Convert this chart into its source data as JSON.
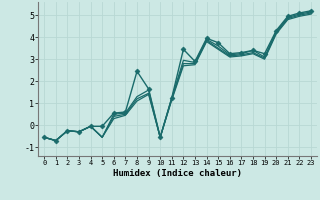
{
  "title": "",
  "xlabel": "Humidex (Indice chaleur)",
  "ylabel": "",
  "xlim": [
    -0.5,
    23.5
  ],
  "ylim": [
    -1.4,
    5.6
  ],
  "yticks": [
    -1,
    0,
    1,
    2,
    3,
    4,
    5
  ],
  "xticks": [
    0,
    1,
    2,
    3,
    4,
    5,
    6,
    7,
    8,
    9,
    10,
    11,
    12,
    13,
    14,
    15,
    16,
    17,
    18,
    19,
    20,
    21,
    22,
    23
  ],
  "bg_color": "#cce8e4",
  "line_color": "#1a6b6b",
  "grid_color": "#b8d8d4",
  "series": [
    {
      "x": [
        0,
        1,
        2,
        3,
        4,
        5,
        6,
        7,
        8,
        9,
        10,
        11,
        12,
        13,
        14,
        15,
        16,
        17,
        18,
        19,
        20,
        21,
        22,
        23
      ],
      "y": [
        -0.55,
        -0.7,
        -0.25,
        -0.3,
        -0.05,
        -0.05,
        0.55,
        0.6,
        2.45,
        1.65,
        -0.55,
        1.25,
        3.45,
        2.9,
        3.95,
        3.75,
        3.25,
        3.3,
        3.4,
        3.25,
        4.3,
        4.95,
        5.1,
        5.2
      ],
      "marker": "D",
      "markersize": 2.5,
      "linewidth": 1.0
    },
    {
      "x": [
        0,
        1,
        2,
        3,
        4,
        5,
        6,
        7,
        8,
        9,
        10,
        11,
        12,
        13,
        14,
        15,
        16,
        17,
        18,
        19,
        20,
        21,
        22,
        23
      ],
      "y": [
        -0.55,
        -0.7,
        -0.25,
        -0.3,
        -0.05,
        -0.55,
        0.5,
        0.55,
        1.3,
        1.6,
        -0.55,
        1.25,
        2.95,
        2.85,
        3.9,
        3.6,
        3.2,
        3.25,
        3.4,
        3.1,
        4.25,
        4.9,
        5.05,
        5.15
      ],
      "marker": null,
      "markersize": 0,
      "linewidth": 0.9
    },
    {
      "x": [
        0,
        1,
        2,
        3,
        4,
        5,
        6,
        7,
        8,
        9,
        10,
        11,
        12,
        13,
        14,
        15,
        16,
        17,
        18,
        19,
        20,
        21,
        22,
        23
      ],
      "y": [
        -0.55,
        -0.7,
        -0.25,
        -0.3,
        -0.05,
        -0.55,
        0.4,
        0.5,
        1.2,
        1.45,
        -0.55,
        1.2,
        2.8,
        2.8,
        3.85,
        3.5,
        3.15,
        3.2,
        3.3,
        3.05,
        4.2,
        4.85,
        5.0,
        5.1
      ],
      "marker": null,
      "markersize": 0,
      "linewidth": 0.9
    },
    {
      "x": [
        0,
        1,
        2,
        3,
        4,
        5,
        6,
        7,
        8,
        9,
        10,
        11,
        12,
        13,
        14,
        15,
        16,
        17,
        18,
        19,
        20,
        21,
        22,
        23
      ],
      "y": [
        -0.55,
        -0.7,
        -0.25,
        -0.3,
        -0.05,
        -0.55,
        0.3,
        0.45,
        1.1,
        1.4,
        -0.55,
        1.15,
        2.7,
        2.75,
        3.8,
        3.45,
        3.1,
        3.15,
        3.25,
        3.0,
        4.15,
        4.8,
        4.95,
        5.05
      ],
      "marker": null,
      "markersize": 0,
      "linewidth": 0.9
    }
  ]
}
